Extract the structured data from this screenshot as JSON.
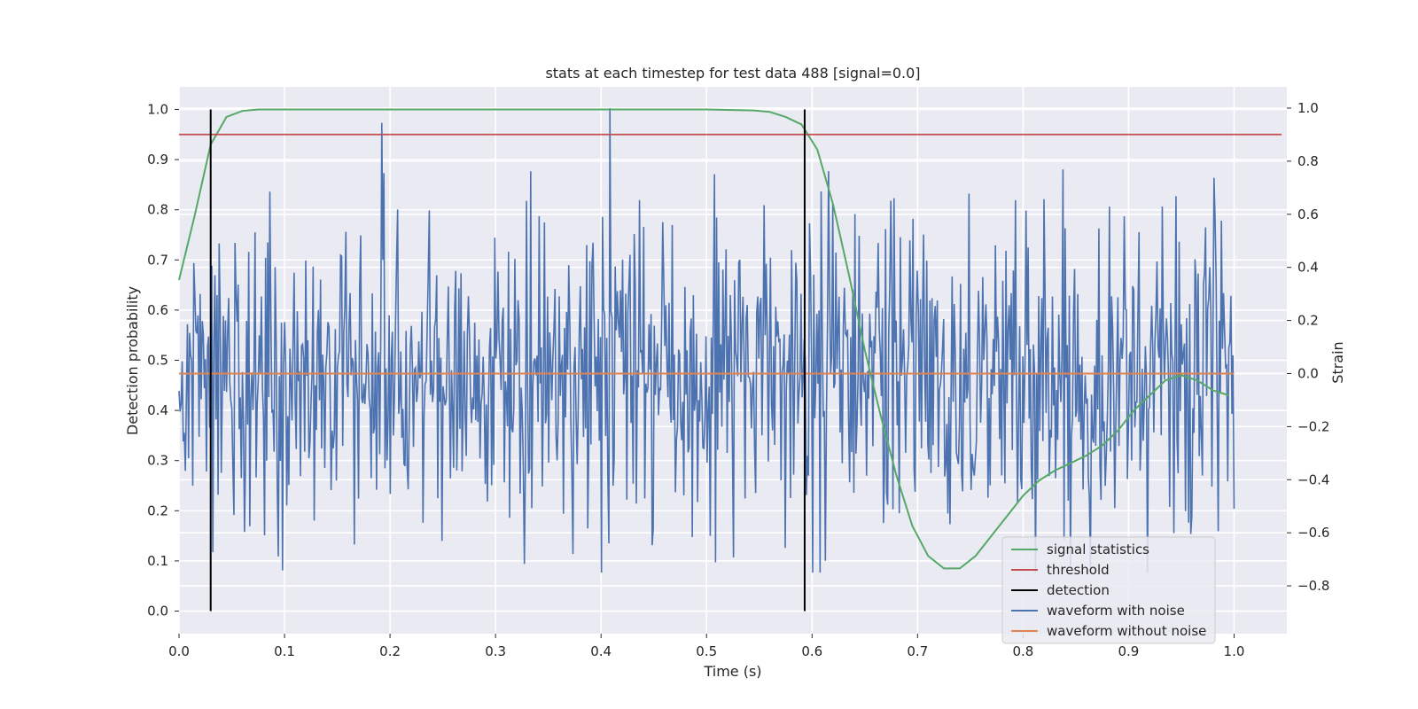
{
  "chart_data": {
    "type": "line",
    "title": "stats at each timestep for test data 488 [signal=0.0]",
    "xlabel": "Time (s)",
    "ylabel_left": "Detection probability",
    "ylabel_right": "Strain",
    "xlim": [
      0.0,
      1.05
    ],
    "ylim_left": [
      -0.045,
      1.045
    ],
    "ylim_right": [
      -0.98,
      1.08
    ],
    "x_ticks": [
      "0.0",
      "0.1",
      "0.2",
      "0.3",
      "0.4",
      "0.5",
      "0.6",
      "0.7",
      "0.8",
      "0.9",
      "1.0"
    ],
    "y_ticks_left": [
      "0.0",
      "0.1",
      "0.2",
      "0.3",
      "0.4",
      "0.5",
      "0.6",
      "0.7",
      "0.8",
      "0.9",
      "1.0"
    ],
    "y_ticks_right": [
      "−0.8",
      "−0.6",
      "−0.4",
      "−0.2",
      "0.0",
      "0.2",
      "0.4",
      "0.6",
      "0.8",
      "1.0"
    ],
    "grid": true,
    "legend_position": "lower-right",
    "series": [
      {
        "name": "signal statistics",
        "axis": "left",
        "color": "#55a868",
        "x": [
          0.0,
          0.015,
          0.03,
          0.045,
          0.06,
          0.075,
          0.1,
          0.2,
          0.3,
          0.4,
          0.5,
          0.545,
          0.56,
          0.575,
          0.59,
          0.605,
          0.62,
          0.635,
          0.65,
          0.665,
          0.68,
          0.695,
          0.71,
          0.725,
          0.74,
          0.755,
          0.77,
          0.785,
          0.8,
          0.815,
          0.83,
          0.845,
          0.86,
          0.875,
          0.89,
          0.905,
          0.92,
          0.935,
          0.95,
          0.965,
          0.98,
          0.995
        ],
        "values": [
          0.66,
          0.79,
          0.93,
          0.985,
          0.997,
          1.0,
          1.0,
          1.0,
          1.0,
          1.0,
          1.0,
          0.998,
          0.995,
          0.985,
          0.97,
          0.92,
          0.81,
          0.67,
          0.52,
          0.39,
          0.27,
          0.17,
          0.11,
          0.085,
          0.085,
          0.11,
          0.15,
          0.19,
          0.23,
          0.26,
          0.28,
          0.295,
          0.31,
          0.33,
          0.36,
          0.4,
          0.43,
          0.46,
          0.47,
          0.46,
          0.44,
          0.43
        ]
      },
      {
        "name": "threshold",
        "axis": "left",
        "color": "#c44e52",
        "x": [
          0.0,
          1.045
        ],
        "values": [
          0.95,
          0.95
        ]
      },
      {
        "name": "detection",
        "axis": "left",
        "color": "#000000",
        "type": "vlines",
        "x": [
          0.03,
          0.593
        ],
        "ymin": 0.0,
        "ymax": 1.0
      },
      {
        "name": "waveform with noise",
        "axis": "right",
        "color": "#4c72b0",
        "x_start": 0.0,
        "x_end": 1.0,
        "count": 1000,
        "values_summary": "noise, roughly -0.7 to 1.0 (strain)"
      },
      {
        "name": "waveform without noise",
        "axis": "right",
        "color": "#dd8452",
        "x": [
          0.0,
          1.0
        ],
        "values": [
          0.0,
          0.0
        ]
      }
    ]
  }
}
